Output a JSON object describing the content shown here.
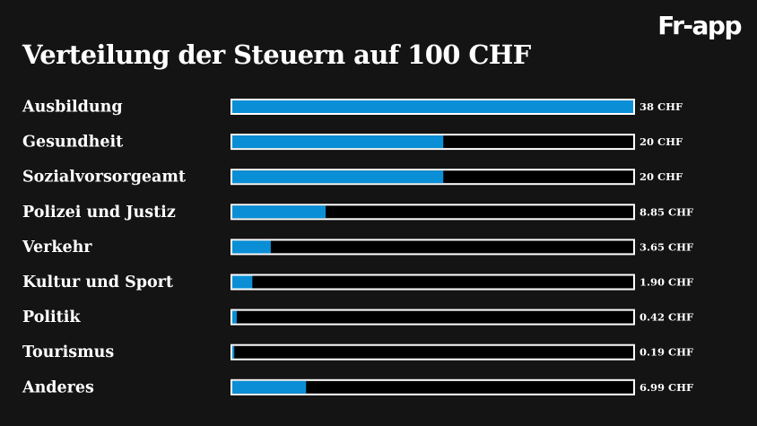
{
  "brand": {
    "logo_text": "Fr-app"
  },
  "colors": {
    "background": "#141414",
    "bar_fill": "#0a8fd6",
    "bar_track": "#000000",
    "bar_border": "#ffffff",
    "text": "#ffffff"
  },
  "chart_data": {
    "type": "bar",
    "orientation": "horizontal",
    "title": "Verteilung der Steuern auf 100 CHF",
    "xlabel": "",
    "ylabel": "",
    "xlim": [
      0,
      38
    ],
    "grid": false,
    "legend": "none",
    "categories": [
      "Ausbildung",
      "Gesundheit",
      "Sozialvorsorgeamt",
      "Polizei und Justiz",
      "Verkehr",
      "Kultur und Sport",
      "Politik",
      "Tourismus",
      "Anderes"
    ],
    "values": [
      38,
      20,
      20,
      8.85,
      3.65,
      1.9,
      0.42,
      0.19,
      6.99
    ],
    "value_labels": [
      "38 CHF",
      "20 CHF",
      "20 CHF",
      "8.85 CHF",
      "3.65 CHF",
      "1.90 CHF",
      "0.42 CHF",
      "0.19 CHF",
      "6.99 CHF"
    ]
  }
}
